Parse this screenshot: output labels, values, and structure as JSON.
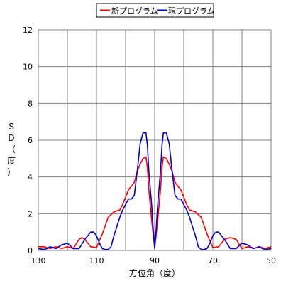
{
  "chart_data": {
    "type": "line",
    "title": "",
    "xlabel": "方位角（度）",
    "ylabel": [
      "Ｓ",
      "Ｄ",
      "（",
      "度",
      "）"
    ],
    "xlim": [
      130,
      50
    ],
    "ylim": [
      0,
      12
    ],
    "xticks": [
      130,
      110,
      90,
      70,
      50
    ],
    "yticks": [
      0,
      2,
      4,
      6,
      8,
      10,
      12
    ],
    "grid": true,
    "legend_position": "top-center",
    "series": [
      {
        "name": "新プログラム",
        "color": "#ff0000",
        "x": [
          130,
          128,
          126,
          124,
          122,
          120,
          118,
          116,
          115,
          114,
          112,
          110,
          108,
          106,
          104,
          102,
          101,
          100,
          99,
          98,
          97,
          96,
          95,
          94,
          93,
          92.5,
          92,
          91,
          90.5,
          90,
          89.5,
          89,
          88,
          87.5,
          87,
          86,
          85,
          84,
          83,
          82,
          81,
          80,
          79,
          78,
          76,
          74,
          72,
          70,
          68,
          66,
          64,
          62,
          60,
          58,
          56,
          54,
          52,
          50
        ],
        "y": [
          0.2,
          0.2,
          0.1,
          0.2,
          0.1,
          0.2,
          0.1,
          0.6,
          0.7,
          0.6,
          0.2,
          0.15,
          0.9,
          1.8,
          2.1,
          2.2,
          2.5,
          2.9,
          3.3,
          3.5,
          3.7,
          4.3,
          4.7,
          5.0,
          5.1,
          4.5,
          3.3,
          1.6,
          0.8,
          0.2,
          0.8,
          1.6,
          3.3,
          4.5,
          5.1,
          5.0,
          4.7,
          4.3,
          3.7,
          3.5,
          3.3,
          2.9,
          2.5,
          2.2,
          2.1,
          1.8,
          0.9,
          0.15,
          0.2,
          0.6,
          0.7,
          0.6,
          0.1,
          0.2,
          0.1,
          0.2,
          0.1,
          0.2
        ]
      },
      {
        "name": "現プログラム",
        "color": "#0000cc",
        "x": [
          130,
          128,
          127,
          126,
          124,
          122,
          120,
          118,
          116,
          114,
          112,
          111,
          110,
          109,
          108,
          107,
          106,
          105,
          104,
          103,
          102,
          101,
          100,
          99,
          98,
          97,
          96,
          95,
          94,
          93,
          92.5,
          92,
          91,
          90.5,
          90,
          89.5,
          89,
          88,
          87.5,
          87,
          86,
          85,
          84,
          83,
          82,
          81,
          80,
          79,
          78,
          77,
          76,
          75,
          74,
          73,
          72,
          71,
          70,
          69,
          68,
          66,
          64,
          62,
          60,
          58,
          56,
          54,
          53,
          52,
          50
        ],
        "y": [
          0.1,
          0.05,
          0.1,
          0.2,
          0.1,
          0.3,
          0.4,
          0.1,
          0.1,
          0.6,
          1.0,
          1.0,
          0.8,
          0.4,
          0.1,
          0.05,
          0.05,
          0.2,
          0.8,
          1.3,
          1.8,
          2.2,
          2.5,
          2.8,
          2.8,
          3.0,
          4.3,
          5.8,
          6.4,
          6.4,
          5.7,
          4.3,
          2.4,
          1.1,
          0.1,
          1.1,
          2.4,
          4.3,
          5.7,
          6.4,
          6.4,
          5.8,
          4.3,
          3.0,
          2.8,
          2.8,
          2.5,
          2.2,
          1.8,
          1.3,
          0.8,
          0.2,
          0.05,
          0.05,
          0.1,
          0.4,
          0.8,
          1.0,
          1.0,
          0.6,
          0.1,
          0.1,
          0.4,
          0.3,
          0.1,
          0.2,
          0.1,
          0.05,
          0.1
        ]
      }
    ]
  }
}
